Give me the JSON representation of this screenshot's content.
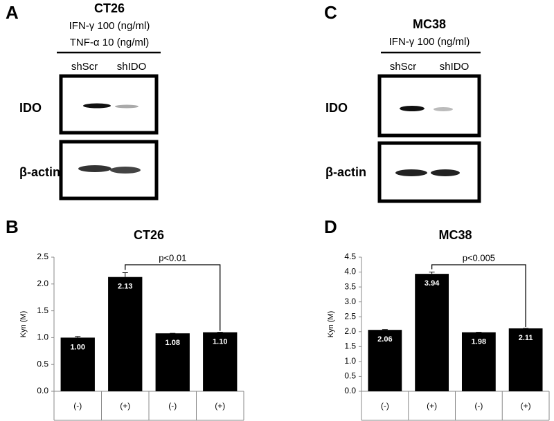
{
  "panels": [
    {
      "letter": "A",
      "cell_line": "CT26",
      "treatments": [
        "IFN-γ 100 (ng/ml)",
        "TNF-α 10 (ng/ml)"
      ],
      "lanes": [
        "shScr",
        "shIDO"
      ],
      "blots": [
        "IDO",
        "β-actin"
      ]
    },
    {
      "letter": "C",
      "cell_line": "MC38",
      "treatments": [
        "IFN-γ 100 (ng/ml)"
      ],
      "lanes": [
        "shScr",
        "shIDO"
      ],
      "blots": [
        "IDO",
        "β-actin"
      ]
    }
  ],
  "chart_data": [
    {
      "type": "bar",
      "panel": "B",
      "title": "CT26",
      "ylabel": "Kyn (M)",
      "color": "#000000",
      "categories": [
        "(-)",
        "(+)",
        "(-)",
        "(+)"
      ],
      "values": [
        1.0,
        2.13,
        1.08,
        1.1
      ],
      "value_labels": [
        "1.00",
        "2.13",
        "1.08",
        "1.10"
      ],
      "errors": [
        0.02,
        0.08,
        0,
        0
      ],
      "annotation": "p<0.01",
      "ylim": [
        0,
        2.5
      ],
      "yticks": [
        {
          "value": 0,
          "label": "0.0"
        },
        0.5,
        {
          "value": 1,
          "label": "1.0"
        },
        1.5,
        {
          "value": 2,
          "label": "2.0"
        },
        2.5
      ]
    },
    {
      "type": "bar",
      "panel": "D",
      "title": "MC38",
      "ylabel": "Kyn (M)",
      "color": "#000000",
      "categories": [
        "(-)",
        "(+)",
        "(-)",
        "(+)"
      ],
      "values": [
        2.06,
        3.94,
        1.98,
        2.11
      ],
      "value_labels": [
        "2.06",
        "3.94",
        "1.98",
        "2.11"
      ],
      "errors": [
        0.01,
        0.06,
        0,
        0
      ],
      "annotation": "p<0.005",
      "ylim": [
        0,
        4.5
      ],
      "yticks": [
        {
          "value": 0,
          "label": "0.0"
        },
        0.5,
        {
          "value": 1,
          "label": "1.0"
        },
        1.5,
        {
          "value": 2,
          "label": "2.0"
        },
        2.5,
        {
          "value": 3,
          "label": "3.0"
        },
        3.5,
        {
          "value": 4,
          "label": "4.0"
        },
        4.5
      ]
    }
  ]
}
